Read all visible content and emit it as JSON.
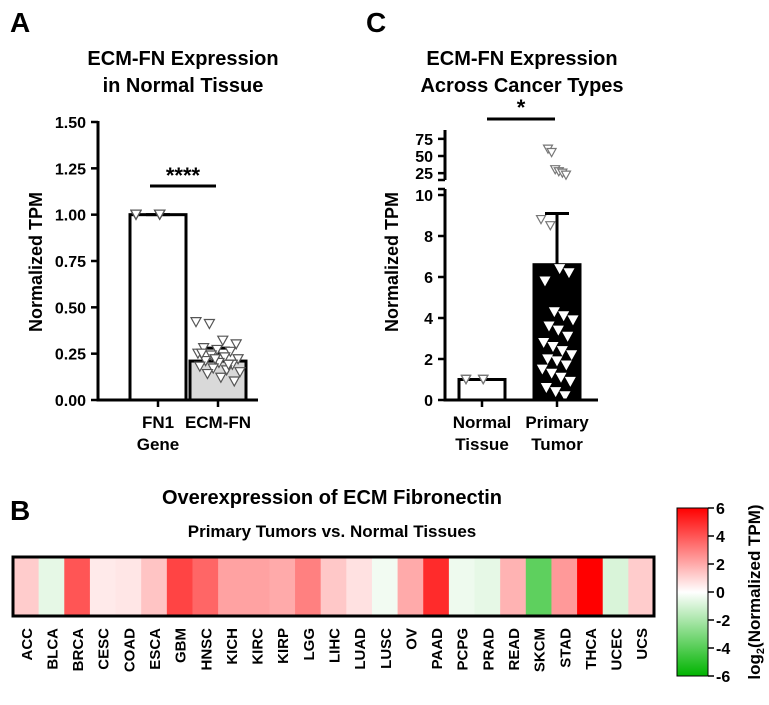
{
  "chart_data": [
    {
      "type": "bar",
      "panel": "A",
      "title_lines": [
        "ECM-FN Expression",
        "in Normal Tissue"
      ],
      "ylabel": "Normalized TPM",
      "ylim": [
        0,
        1.5
      ],
      "ytick_labels": [
        "0.00",
        "0.25",
        "0.50",
        "0.75",
        "1.00",
        "1.25",
        "1.50"
      ],
      "categories": [
        [
          "FN1",
          "Gene"
        ],
        [
          "ECM-FN"
        ]
      ],
      "values": [
        1.0,
        0.21
      ],
      "error_upper": [
        1.0,
        0.28
      ],
      "fill_colors": [
        "#ffffff",
        "#d9d9d9"
      ],
      "significance": "****",
      "points": [
        [
          1.0,
          1.0,
          1.0,
          1.0,
          1.0,
          1.0,
          1.0,
          1.0,
          1.0,
          1.0,
          1.0,
          1.0,
          1.0,
          1.0
        ],
        [
          0.42,
          0.41,
          0.32,
          0.3,
          0.28,
          0.27,
          0.26,
          0.25,
          0.24,
          0.23,
          0.22,
          0.21,
          0.2,
          0.19,
          0.18,
          0.17,
          0.16,
          0.15,
          0.14,
          0.12,
          0.1,
          0.25,
          0.22,
          0.19
        ]
      ]
    },
    {
      "type": "bar",
      "panel": "C",
      "title_lines": [
        "ECM-FN Expression",
        "Across Cancer Types"
      ],
      "ylabel": "Normalized TPM",
      "ylim_lower": [
        0,
        10
      ],
      "ylim_upper": [
        15,
        85
      ],
      "ytick_labels_lower": [
        "0",
        "2",
        "4",
        "6",
        "8",
        "10"
      ],
      "ytick_labels_upper": [
        "25",
        "50",
        "75"
      ],
      "categories": [
        [
          "Normal",
          "Tissue"
        ],
        [
          "Primary",
          "Tumor"
        ]
      ],
      "values": [
        1.0,
        6.6
      ],
      "error_upper": [
        1.0,
        9.1
      ],
      "fill_colors": [
        "#ffffff",
        "#000000"
      ],
      "significance": "*",
      "points": [
        [
          1.0,
          1.0,
          1.0,
          1.0,
          1.0,
          1.0,
          1.0,
          1.0,
          1.0,
          1.0,
          1.0,
          1.0,
          1.0,
          1.0
        ],
        [
          8.8,
          8.5,
          6.4,
          6.2,
          5.8,
          4.3,
          4.1,
          3.9,
          3.6,
          3.4,
          3.1,
          2.8,
          2.6,
          2.4,
          2.2,
          2.0,
          1.9,
          1.7,
          1.5,
          1.3,
          1.1,
          0.9,
          0.6,
          0.4,
          0.2
        ],
        [
          60,
          55,
          30,
          27,
          25,
          22
        ]
      ]
    },
    {
      "type": "heatmap",
      "panel": "B",
      "title": "Overexpression of ECM Fibronectin",
      "subtitle": "Primary Tumors vs. Normal Tissues",
      "categories": [
        "ACC",
        "BLCA",
        "BRCA",
        "CESC",
        "COAD",
        "ESCA",
        "GBM",
        "HNSC",
        "KICH",
        "KIRC",
        "KIRP",
        "LGG",
        "LIHC",
        "LUAD",
        "LUSC",
        "OV",
        "PAAD",
        "PCPG",
        "PRAD",
        "READ",
        "SKCM",
        "STAD",
        "THCA",
        "UCEC",
        "UCS"
      ],
      "values": [
        1.2,
        -0.6,
        4.0,
        0.5,
        0.6,
        1.4,
        4.4,
        3.6,
        2.2,
        2.2,
        2.0,
        3.0,
        1.3,
        0.7,
        -0.3,
        2.0,
        5.0,
        -0.4,
        -0.6,
        1.8,
        -3.8,
        2.4,
        6.0,
        -0.9,
        1.2
      ],
      "colorbar": {
        "label_prefix": "log",
        "label_sub": "2",
        "label_suffix": "(Normalized TPM)",
        "ticks": [
          "6",
          "4",
          "2",
          "0",
          "-2",
          "-4",
          "-6"
        ],
        "range": [
          -6,
          6
        ],
        "colors": {
          "low": "#00b400",
          "mid": "#ffffff",
          "high": "#ff0000"
        }
      }
    }
  ],
  "panel_labels": {
    "a": "A",
    "b": "B",
    "c": "C"
  }
}
